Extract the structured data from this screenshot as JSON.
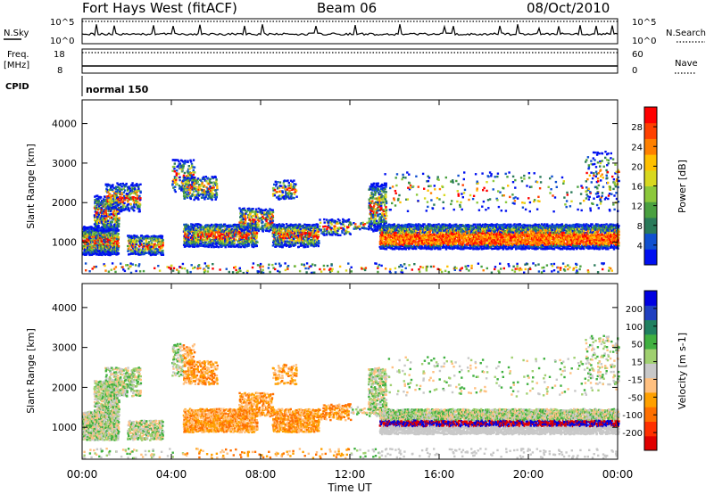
{
  "header": {
    "title": "Fort Hays West (fitACF)",
    "beam": "Beam 06",
    "date": "08/Oct/2010"
  },
  "top_labels": {
    "nsky": "N.Sky",
    "nsky_hi": "10^5",
    "nsky_lo": "10^0",
    "nsearch": "N.Search",
    "nsearch_hi": "10^5",
    "nsearch_lo": "10^0",
    "freq_title": "Freq.",
    "freq_unit": "[MHz]",
    "freq_hi": "18",
    "freq_lo": "8",
    "nave": "Nave",
    "nave_hi": "60",
    "nave_lo": "0",
    "cpid": "CPID",
    "cpid_value": "normal 150"
  },
  "chart_data": [
    {
      "type": "heatmap",
      "name": "power",
      "ylabel": "Slant Range [km]",
      "yticks": [
        1000,
        2000,
        3000,
        4000
      ],
      "ylim": [
        200,
        4600
      ],
      "xlim_hours": [
        0,
        24
      ],
      "colorbar": {
        "label": "Power [dB]",
        "ticks": [
          "4",
          "8",
          "12",
          "16",
          "20",
          "24",
          "28"
        ],
        "colors": [
          "#0010f0",
          "#1050d0",
          "#2a7a5a",
          "#4aa040",
          "#8cc83c",
          "#d8d820",
          "#ffc000",
          "#ff8000",
          "#ff4000",
          "#ff0000"
        ]
      }
    },
    {
      "type": "heatmap",
      "name": "velocity",
      "ylabel": "Slant Range [km]",
      "yticks": [
        1000,
        2000,
        3000,
        4000
      ],
      "ylim": [
        200,
        4600
      ],
      "xlim_hours": [
        0,
        24
      ],
      "colorbar": {
        "label": "Velocity [m s-1]",
        "ticks": [
          "200",
          "100",
          "50",
          "15",
          "-15",
          "-50",
          "-100",
          "-200"
        ],
        "colors": [
          "#0000e0",
          "#2040c0",
          "#208060",
          "#40b040",
          "#a0d070",
          "#c8c8c8",
          "#ffc080",
          "#ffa000",
          "#ff7000",
          "#ff3000",
          "#e00000"
        ]
      }
    }
  ],
  "xaxis": {
    "label": "Time UT",
    "ticks": [
      "00:00",
      "04:00",
      "08:00",
      "12:00",
      "16:00",
      "20:00",
      "00:00"
    ]
  }
}
